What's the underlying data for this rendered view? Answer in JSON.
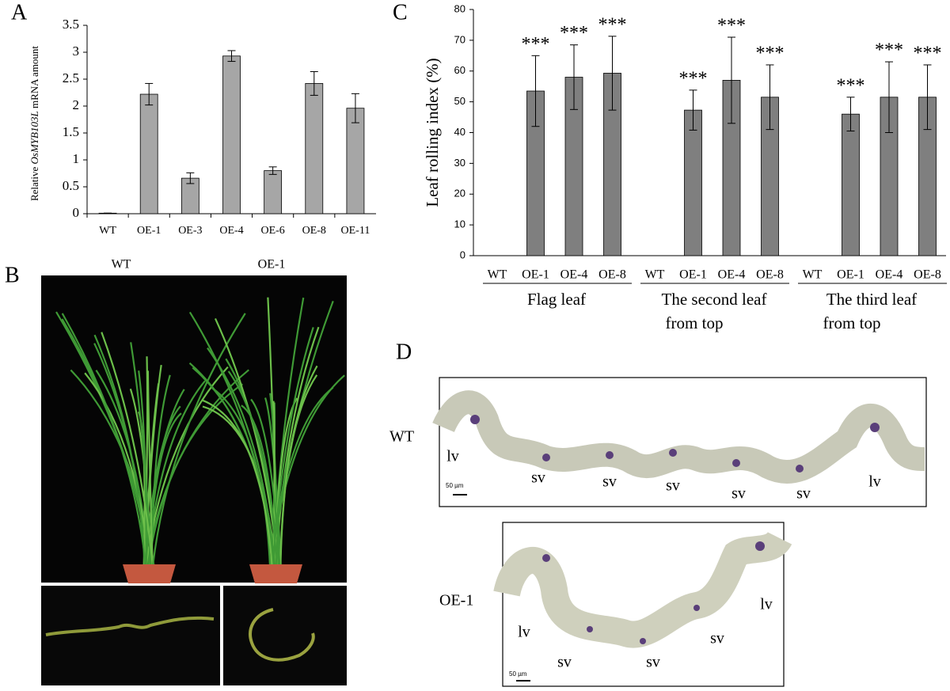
{
  "panel_labels": [
    "A",
    "B",
    "C",
    "D"
  ],
  "chart_data": [
    {
      "type": "bar",
      "y_label": [
        "Relative ",
        "OsMYB103L",
        " mRNA amount"
      ],
      "categories": [
        "WT",
        "OE-1",
        "OE-3",
        "OE-4",
        "OE-6",
        "OE-8",
        "OE-11"
      ],
      "values": [
        0.01,
        2.22,
        0.66,
        2.93,
        0.8,
        2.42,
        1.96
      ],
      "errors": [
        0,
        0.2,
        0.1,
        0.1,
        0.07,
        0.22,
        0.27
      ],
      "color": "#a6a6a6",
      "ylim": [
        0,
        3.5
      ],
      "yticks": [
        0,
        0.5,
        1,
        1.5,
        2,
        2.5,
        3,
        3.5
      ]
    },
    {
      "type": "bar",
      "y_label": "Leaf rolling index (%)",
      "groups": [
        {
          "name": [
            "Flag leaf"
          ],
          "categories": [
            "WT",
            "OE-1",
            "OE-4",
            "OE-8"
          ],
          "values": [
            0,
            53.5,
            58,
            59.3
          ],
          "errors": [
            0,
            11.5,
            10.5,
            12
          ],
          "annotations": [
            null,
            "***",
            "***",
            "***"
          ]
        },
        {
          "name": [
            "The second leaf",
            "from top"
          ],
          "categories": [
            "WT",
            "OE-1",
            "OE-4",
            "OE-8"
          ],
          "values": [
            0,
            47.3,
            57,
            51.5
          ],
          "errors": [
            0,
            6.5,
            14,
            10.5
          ],
          "annotations": [
            null,
            "***",
            "***",
            "***"
          ]
        },
        {
          "name": [
            "The third leaf",
            "from top"
          ],
          "categories": [
            "WT",
            "OE-1",
            "OE-4",
            "OE-8"
          ],
          "values": [
            0,
            46,
            51.5,
            51.5
          ],
          "errors": [
            0,
            5.5,
            11.5,
            10.5
          ],
          "annotations": [
            null,
            "***",
            "***",
            "***"
          ]
        }
      ],
      "color": "#7f7f7f",
      "ylim": [
        0,
        80
      ],
      "yticks": [
        0,
        10,
        20,
        30,
        40,
        50,
        60,
        70,
        80
      ]
    }
  ],
  "photo_b": {
    "labels": [
      "WT",
      "OE-1"
    ]
  },
  "photo_d": {
    "rows": [
      {
        "label": "WT",
        "annotations": [
          "lv",
          "sv",
          "sv",
          "sv",
          "sv",
          "sv",
          "lv"
        ],
        "scale": "50 µm"
      },
      {
        "label": "OE-1",
        "annotations": [
          "lv",
          "sv",
          "sv",
          "sv",
          "lv"
        ],
        "scale": "50 µm"
      }
    ]
  }
}
